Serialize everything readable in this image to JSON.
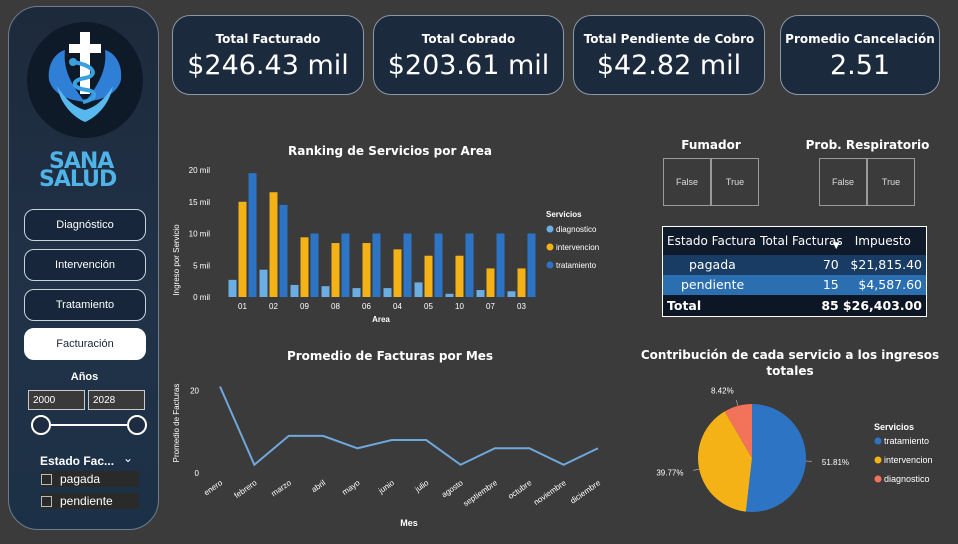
{
  "sidebar": {
    "brand_top": "SANA",
    "brand_bottom": "SALUD",
    "nav": [
      "Diagnóstico",
      "Intervención",
      "Tratamiento",
      "Facturación"
    ],
    "active_nav": "Facturación",
    "years_label": "Años",
    "year_from": "2000",
    "year_to": "2028",
    "year_range": [
      2000,
      2028
    ],
    "estado_slicer_title": "Estado Fac...",
    "estado_options": [
      "pagada",
      "pendiente"
    ]
  },
  "kpis": [
    {
      "title": "Total Facturado",
      "value": "$246.43 mil"
    },
    {
      "title": "Total Cobrado",
      "value": "$203.61 mil"
    },
    {
      "title": "Total Pendiente de Cobro",
      "value": "$42.82 mil"
    },
    {
      "title": "Promedio Cancelación",
      "value": "2.51"
    }
  ],
  "filters": {
    "fumador": {
      "title": "Fumador",
      "options": [
        "False",
        "True"
      ]
    },
    "respiratorio": {
      "title": "Prob. Respiratorio",
      "options": [
        "False",
        "True"
      ]
    }
  },
  "table": {
    "headers": [
      "Estado Factura",
      "Total Facturas",
      "Impuesto"
    ],
    "rows": [
      {
        "estado": "pagada",
        "facturas": "70",
        "impuesto": "$21,815.40"
      },
      {
        "estado": "pendiente",
        "facturas": "15",
        "impuesto": "$4,587.60"
      }
    ],
    "total": {
      "label": "Total",
      "facturas": "85",
      "impuesto": "$26,403.00"
    }
  },
  "colors": {
    "diagnostico": "#6aaee4",
    "intervencion": "#f5b217",
    "tratamiento": "#2d74c4",
    "line": "#6fa8dc",
    "pie_diag": "#f2725a"
  },
  "chart_data": [
    {
      "type": "bar",
      "title": "Ranking de Servicios por Area",
      "xlabel": "Area",
      "ylabel": "Ingreso por Servicio",
      "ylim": [
        0,
        20000
      ],
      "yticks": [
        "0 mil",
        "5 mil",
        "10 mil",
        "15 mil",
        "20 mil"
      ],
      "legend_title": "Servicios",
      "legend_position": "right",
      "categories": [
        "01",
        "02",
        "09",
        "08",
        "06",
        "04",
        "05",
        "10",
        "07",
        "03"
      ],
      "series": [
        {
          "name": "diagnostico",
          "values": [
            2700,
            4300,
            1900,
            1700,
            1400,
            1400,
            2300,
            500,
            1100,
            900
          ]
        },
        {
          "name": "intervencion",
          "values": [
            15000,
            16500,
            9400,
            8500,
            8500,
            7500,
            6500,
            6500,
            4500,
            4500
          ]
        },
        {
          "name": "tratamiento",
          "values": [
            19500,
            14500,
            10000,
            10000,
            10000,
            10000,
            10000,
            10000,
            10000,
            10000
          ]
        }
      ]
    },
    {
      "type": "line",
      "title": "Promedio de Facturas por Mes",
      "xlabel": "Mes",
      "ylabel": "Promedio de Facturas",
      "ylim": [
        0,
        25
      ],
      "yticks": [
        "0",
        "20"
      ],
      "categories": [
        "enero",
        "febrero",
        "marzo",
        "abril",
        "mayo",
        "junio",
        "julio",
        "agosto",
        "septiembre",
        "octubre",
        "noviembre",
        "diciembre"
      ],
      "series": [
        {
          "values": [
            21,
            2,
            9,
            9,
            6,
            8,
            8,
            2,
            6,
            6,
            2,
            6
          ]
        }
      ]
    },
    {
      "type": "pie",
      "title": "Contribución de cada servicio a los ingresos totales",
      "legend_title": "Servicios",
      "legend_position": "right",
      "slices": [
        {
          "label": "tratamiento",
          "value": 51.81,
          "text": "51.81%"
        },
        {
          "label": "intervencion",
          "value": 39.77,
          "text": "39.77%"
        },
        {
          "label": "diagnostico",
          "value": 8.42,
          "text": "8.42%"
        }
      ]
    }
  ]
}
